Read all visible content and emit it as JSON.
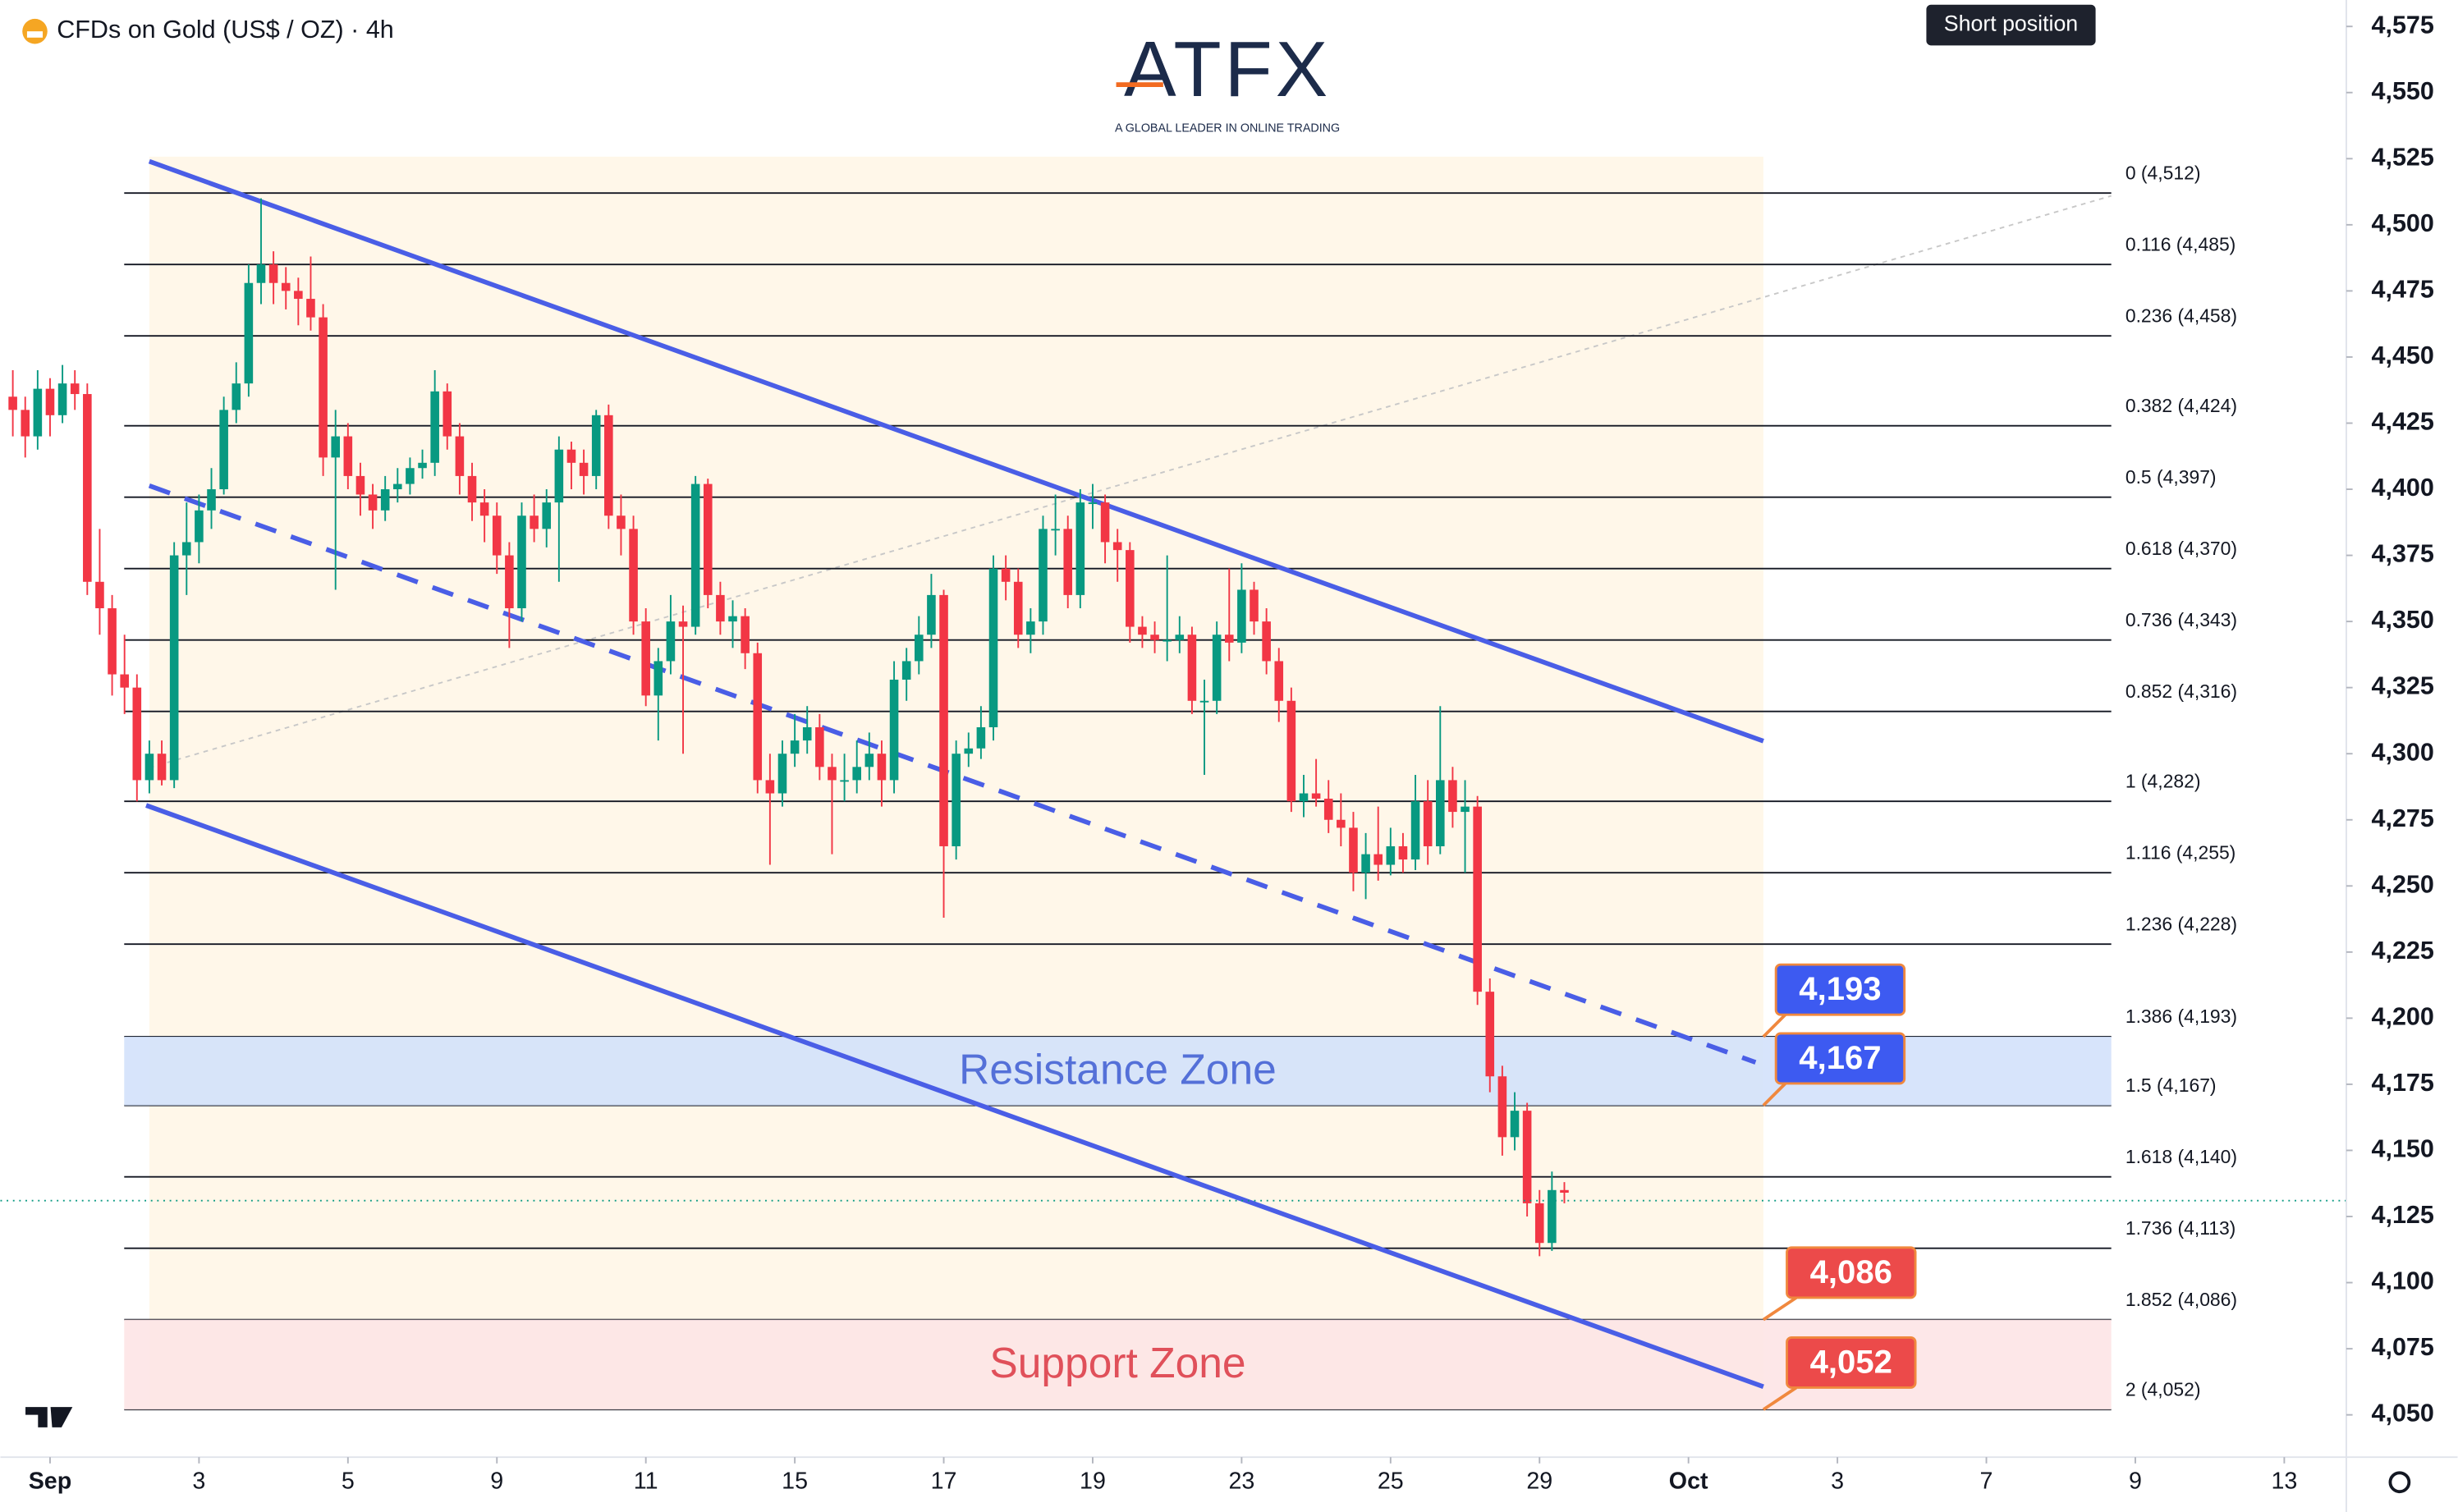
{
  "chart_data": {
    "type": "candlestick",
    "title": "CFDs on Gold (US$ / OZ) · 4h",
    "logo_text": "ATFX",
    "logo_tagline": "A GLOBAL LEADER IN ONLINE TRADING",
    "annotation": "Short position",
    "up_color": "#089981",
    "down_color": "#f23645",
    "xlim": [
      -4,
      185
    ],
    "xticks": [
      {
        "value": 0,
        "label": "Sep"
      },
      {
        "value": 12,
        "label": "3"
      },
      {
        "value": 24,
        "label": "5"
      },
      {
        "value": 36,
        "label": "9"
      },
      {
        "value": 48,
        "label": "11"
      },
      {
        "value": 60,
        "label": "15"
      },
      {
        "value": 72,
        "label": "17"
      },
      {
        "value": 84,
        "label": "19"
      },
      {
        "value": 96,
        "label": "23"
      },
      {
        "value": 108,
        "label": "25"
      },
      {
        "value": 120,
        "label": "29"
      },
      {
        "value": 132,
        "label": "Oct"
      },
      {
        "value": 144,
        "label": "3"
      },
      {
        "value": 156,
        "label": "7"
      },
      {
        "value": 168,
        "label": "9"
      },
      {
        "value": 180,
        "label": "13"
      }
    ],
    "ylim": [
      4034,
      4585
    ],
    "yticks": [
      {
        "value": 4050,
        "label": "4,050"
      },
      {
        "value": 4075,
        "label": "4,075"
      },
      {
        "value": 4100,
        "label": "4,100"
      },
      {
        "value": 4125,
        "label": "4,125"
      },
      {
        "value": 4150,
        "label": "4,150"
      },
      {
        "value": 4175,
        "label": "4,175"
      },
      {
        "value": 4200,
        "label": "4,200"
      },
      {
        "value": 4225,
        "label": "4,225"
      },
      {
        "value": 4250,
        "label": "4,250"
      },
      {
        "value": 4275,
        "label": "4,275"
      },
      {
        "value": 4300,
        "label": "4,300"
      },
      {
        "value": 4325,
        "label": "4,325"
      },
      {
        "value": 4350,
        "label": "4,350"
      },
      {
        "value": 4375,
        "label": "4,375"
      },
      {
        "value": 4400,
        "label": "4,400"
      },
      {
        "value": 4425,
        "label": "4,425"
      },
      {
        "value": 4450,
        "label": "4,450"
      },
      {
        "value": 4475,
        "label": "4,475"
      },
      {
        "value": 4500,
        "label": "4,500"
      },
      {
        "value": 4525,
        "label": "4,525"
      },
      {
        "value": 4550,
        "label": "4,550"
      },
      {
        "value": 4575,
        "label": "4,575"
      }
    ],
    "last_price": 4131,
    "x": [
      -3,
      -2,
      -1,
      0,
      1,
      2,
      3,
      4,
      5,
      6,
      7,
      8,
      9,
      10,
      11,
      12,
      13,
      14,
      15,
      16,
      17,
      18,
      19,
      20,
      21,
      22,
      23,
      24,
      25,
      26,
      27,
      28,
      29,
      30,
      31,
      32,
      33,
      34,
      35,
      36,
      37,
      38,
      39,
      40,
      41,
      42,
      43,
      44,
      45,
      46,
      47,
      48,
      49,
      50,
      51,
      52,
      53,
      54,
      55,
      56,
      57,
      58,
      59,
      60,
      61,
      62,
      63,
      64,
      65,
      66,
      67,
      68,
      69,
      70,
      71,
      72,
      73,
      74,
      75,
      76,
      77,
      78,
      79,
      80,
      81,
      82,
      83,
      84,
      85,
      86,
      87,
      88,
      89,
      90,
      91,
      92,
      93,
      94,
      95,
      96,
      97,
      98,
      99,
      100,
      101,
      102,
      103,
      104,
      105,
      106,
      107,
      108,
      109,
      110,
      111,
      112,
      113,
      114,
      115,
      116,
      117,
      118,
      119,
      120,
      121,
      122
    ],
    "ohlc": [
      [
        4435,
        4445,
        4420,
        4430
      ],
      [
        4430,
        4435,
        4412,
        4420
      ],
      [
        4420,
        4445,
        4415,
        4438
      ],
      [
        4438,
        4442,
        4420,
        4428
      ],
      [
        4428,
        4447,
        4425,
        4440
      ],
      [
        4440,
        4445,
        4430,
        4436
      ],
      [
        4436,
        4440,
        4360,
        4365
      ],
      [
        4365,
        4385,
        4345,
        4355
      ],
      [
        4355,
        4360,
        4322,
        4330
      ],
      [
        4330,
        4345,
        4315,
        4325
      ],
      [
        4325,
        4330,
        4282,
        4290
      ],
      [
        4290,
        4305,
        4285,
        4300
      ],
      [
        4300,
        4305,
        4288,
        4290
      ],
      [
        4290,
        4380,
        4287,
        4375
      ],
      [
        4375,
        4395,
        4360,
        4380
      ],
      [
        4380,
        4398,
        4372,
        4392
      ],
      [
        4392,
        4408,
        4385,
        4400
      ],
      [
        4400,
        4435,
        4398,
        4430
      ],
      [
        4430,
        4448,
        4425,
        4440
      ],
      [
        4440,
        4485,
        4435,
        4478
      ],
      [
        4478,
        4510,
        4470,
        4485
      ],
      [
        4485,
        4490,
        4470,
        4478
      ],
      [
        4478,
        4484,
        4468,
        4475
      ],
      [
        4475,
        4480,
        4462,
        4472
      ],
      [
        4472,
        4488,
        4460,
        4465
      ],
      [
        4465,
        4470,
        4405,
        4412
      ],
      [
        4412,
        4430,
        4362,
        4420
      ],
      [
        4420,
        4425,
        4400,
        4405
      ],
      [
        4405,
        4410,
        4390,
        4398
      ],
      [
        4398,
        4402,
        4385,
        4392
      ],
      [
        4392,
        4405,
        4388,
        4400
      ],
      [
        4400,
        4408,
        4395,
        4402
      ],
      [
        4402,
        4412,
        4398,
        4408
      ],
      [
        4408,
        4415,
        4404,
        4410
      ],
      [
        4410,
        4445,
        4405,
        4437
      ],
      [
        4437,
        4440,
        4415,
        4420
      ],
      [
        4420,
        4425,
        4398,
        4405
      ],
      [
        4405,
        4410,
        4388,
        4395
      ],
      [
        4395,
        4400,
        4380,
        4390
      ],
      [
        4390,
        4395,
        4368,
        4375
      ],
      [
        4375,
        4380,
        4340,
        4355
      ],
      [
        4355,
        4395,
        4350,
        4390
      ],
      [
        4390,
        4398,
        4380,
        4385
      ],
      [
        4385,
        4400,
        4378,
        4395
      ],
      [
        4395,
        4420,
        4365,
        4415
      ],
      [
        4415,
        4418,
        4400,
        4410
      ],
      [
        4410,
        4415,
        4398,
        4405
      ],
      [
        4405,
        4430,
        4400,
        4428
      ],
      [
        4428,
        4432,
        4385,
        4390
      ],
      [
        4390,
        4398,
        4375,
        4385
      ],
      [
        4385,
        4390,
        4345,
        4350
      ],
      [
        4350,
        4355,
        4318,
        4322
      ],
      [
        4322,
        4340,
        4305,
        4335
      ],
      [
        4335,
        4360,
        4330,
        4350
      ],
      [
        4350,
        4356,
        4300,
        4348
      ],
      [
        4348,
        4405,
        4345,
        4402
      ],
      [
        4402,
        4404,
        4355,
        4360
      ],
      [
        4360,
        4365,
        4345,
        4350
      ],
      [
        4350,
        4358,
        4340,
        4352
      ],
      [
        4352,
        4355,
        4332,
        4338
      ],
      [
        4338,
        4342,
        4285,
        4290
      ],
      [
        4290,
        4300,
        4258,
        4285
      ],
      [
        4285,
        4305,
        4280,
        4300
      ],
      [
        4300,
        4315,
        4295,
        4305
      ],
      [
        4305,
        4318,
        4300,
        4310
      ],
      [
        4310,
        4315,
        4290,
        4295
      ],
      [
        4295,
        4300,
        4262,
        4290
      ],
      [
        4290,
        4300,
        4282,
        4290
      ],
      [
        4290,
        4305,
        4285,
        4295
      ],
      [
        4295,
        4308,
        4290,
        4300
      ],
      [
        4300,
        4305,
        4280,
        4290
      ],
      [
        4290,
        4335,
        4285,
        4328
      ],
      [
        4328,
        4340,
        4320,
        4335
      ],
      [
        4335,
        4352,
        4330,
        4345
      ],
      [
        4345,
        4368,
        4340,
        4360
      ],
      [
        4360,
        4362,
        4238,
        4265
      ],
      [
        4265,
        4305,
        4260,
        4300
      ],
      [
        4300,
        4308,
        4295,
        4302
      ],
      [
        4302,
        4318,
        4298,
        4310
      ],
      [
        4310,
        4375,
        4305,
        4370
      ],
      [
        4370,
        4375,
        4358,
        4365
      ],
      [
        4365,
        4370,
        4340,
        4345
      ],
      [
        4345,
        4355,
        4338,
        4350
      ],
      [
        4350,
        4390,
        4345,
        4385
      ],
      [
        4385,
        4398,
        4375,
        4385
      ],
      [
        4385,
        4390,
        4355,
        4360
      ],
      [
        4360,
        4400,
        4355,
        4395
      ],
      [
        4395,
        4402,
        4385,
        4395
      ],
      [
        4395,
        4398,
        4372,
        4380
      ],
      [
        4380,
        4385,
        4365,
        4377
      ],
      [
        4377,
        4380,
        4342,
        4348
      ],
      [
        4348,
        4352,
        4340,
        4345
      ],
      [
        4345,
        4350,
        4338,
        4343
      ],
      [
        4343,
        4375,
        4335,
        4343
      ],
      [
        4343,
        4352,
        4338,
        4345
      ],
      [
        4345,
        4348,
        4315,
        4320
      ],
      [
        4320,
        4328,
        4292,
        4320
      ],
      [
        4320,
        4350,
        4315,
        4345
      ],
      [
        4345,
        4370,
        4335,
        4342
      ],
      [
        4342,
        4372,
        4338,
        4362
      ],
      [
        4362,
        4365,
        4345,
        4350
      ],
      [
        4350,
        4355,
        4330,
        4335
      ],
      [
        4335,
        4340,
        4312,
        4320
      ],
      [
        4320,
        4325,
        4278,
        4282
      ],
      [
        4282,
        4292,
        4276,
        4285
      ],
      [
        4285,
        4298,
        4280,
        4283
      ],
      [
        4283,
        4290,
        4270,
        4275
      ],
      [
        4275,
        4285,
        4265,
        4272
      ],
      [
        4272,
        4278,
        4248,
        4255
      ],
      [
        4255,
        4270,
        4245,
        4262
      ],
      [
        4262,
        4280,
        4252,
        4258
      ],
      [
        4258,
        4272,
        4254,
        4265
      ],
      [
        4265,
        4270,
        4255,
        4260
      ],
      [
        4260,
        4292,
        4256,
        4282
      ],
      [
        4282,
        4290,
        4258,
        4265
      ],
      [
        4265,
        4318,
        4262,
        4290
      ],
      [
        4290,
        4295,
        4272,
        4278
      ],
      [
        4278,
        4290,
        4255,
        4280
      ],
      [
        4280,
        4284,
        4205,
        4210
      ],
      [
        4210,
        4215,
        4172,
        4178
      ],
      [
        4178,
        4182,
        4148,
        4155
      ],
      [
        4155,
        4172,
        4150,
        4165
      ],
      [
        4165,
        4168,
        4125,
        4130
      ],
      [
        4130,
        4135,
        4110,
        4115
      ],
      [
        4115,
        4142,
        4112,
        4135
      ],
      [
        4135,
        4138,
        4130,
        4134
      ]
    ],
    "fib_levels": [
      {
        "value": 4512,
        "label": "0 (4,512)"
      },
      {
        "value": 4485,
        "label": "0.116 (4,485)"
      },
      {
        "value": 4458,
        "label": "0.236 (4,458)"
      },
      {
        "value": 4424,
        "label": "0.382 (4,424)"
      },
      {
        "value": 4397,
        "label": "0.5 (4,397)"
      },
      {
        "value": 4370,
        "label": "0.618 (4,370)"
      },
      {
        "value": 4343,
        "label": "0.736 (4,343)"
      },
      {
        "value": 4316,
        "label": "0.852 (4,316)"
      },
      {
        "value": 4282,
        "label": "1 (4,282)"
      },
      {
        "value": 4255,
        "label": "1.116 (4,255)"
      },
      {
        "value": 4228,
        "label": "1.236 (4,228)"
      },
      {
        "value": 4193,
        "label": "1.386 (4,193)"
      },
      {
        "value": 4167,
        "label": "1.5 (4,167)"
      },
      {
        "value": 4140,
        "label": "1.618 (4,140)"
      },
      {
        "value": 4113,
        "label": "1.736 (4,113)"
      },
      {
        "value": 4086,
        "label": "1.852 (4,086)"
      },
      {
        "value": 4052,
        "label": "2 (4,052)"
      }
    ],
    "zones": [
      {
        "label": "Resistance Zone",
        "from": 4167,
        "to": 4193,
        "fill": "#d3e1fb",
        "text_color": "#5470d8"
      },
      {
        "label": "Support Zone",
        "from": 4052,
        "to": 4086,
        "fill": "#fde4e6",
        "text_color": "#e0505a"
      }
    ],
    "price_badges": [
      {
        "label": "4,193",
        "value": 4193,
        "color": "#3d5af1"
      },
      {
        "label": "4,167",
        "value": 4167,
        "color": "#3d5af1"
      },
      {
        "label": "4,086",
        "value": 4086,
        "color": "#ec4a4a"
      },
      {
        "label": "4,052",
        "value": 4052,
        "color": "#ec4a4a"
      }
    ]
  }
}
